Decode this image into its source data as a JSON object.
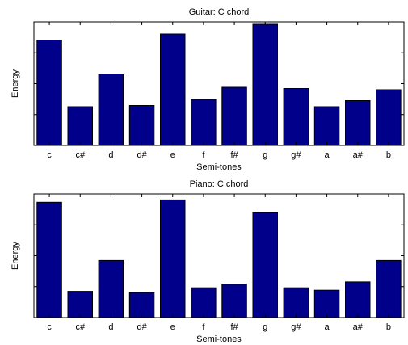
{
  "chart_data": [
    {
      "type": "bar",
      "title": "Guitar: C chord",
      "xlabel": "Semi-tones",
      "ylabel": "Energy",
      "categories": [
        "c",
        "c#",
        "d",
        "d#",
        "e",
        "f",
        "f#",
        "g",
        "g#",
        "a",
        "a#",
        "b"
      ],
      "values": [
        0.87,
        0.32,
        0.59,
        0.33,
        0.92,
        0.38,
        0.48,
        1.0,
        0.47,
        0.32,
        0.37,
        0.46
      ],
      "ylim": [
        0,
        1.02
      ],
      "grid": false,
      "bar_color": "#00008b"
    },
    {
      "type": "bar",
      "title": "Piano: C chord",
      "xlabel": "Semi-tones",
      "ylabel": "Energy",
      "categories": [
        "c",
        "c#",
        "d",
        "d#",
        "e",
        "f",
        "f#",
        "g",
        "g#",
        "a",
        "a#",
        "b"
      ],
      "values": [
        0.97,
        0.22,
        0.48,
        0.21,
        0.99,
        0.25,
        0.28,
        0.88,
        0.25,
        0.23,
        0.3,
        0.48
      ],
      "ylim": [
        0,
        1.04
      ],
      "grid": false,
      "bar_color": "#00008b"
    }
  ]
}
